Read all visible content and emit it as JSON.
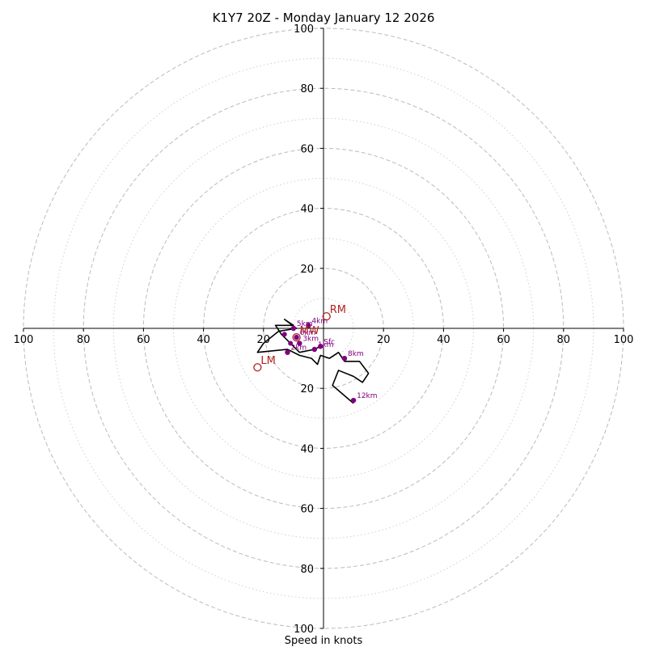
{
  "chart_data": {
    "type": "hodograph",
    "title": "K1Y7 20Z - Monday January 12 2026",
    "xlabel": "Speed in knots",
    "range": [
      -100,
      100
    ],
    "rings_major": [
      20,
      40,
      60,
      80,
      100
    ],
    "rings_minor": [
      10,
      30,
      50,
      70,
      90
    ],
    "x_ticks": [
      {
        "v": -100,
        "t": "100"
      },
      {
        "v": -80,
        "t": "80"
      },
      {
        "v": -60,
        "t": "60"
      },
      {
        "v": -40,
        "t": "40"
      },
      {
        "v": -20,
        "t": "20"
      },
      {
        "v": 20,
        "t": "20"
      },
      {
        "v": 40,
        "t": "40"
      },
      {
        "v": 60,
        "t": "60"
      },
      {
        "v": 80,
        "t": "80"
      },
      {
        "v": 100,
        "t": "100"
      }
    ],
    "y_ticks": [
      {
        "v": 100,
        "t": "100"
      },
      {
        "v": 80,
        "t": "80"
      },
      {
        "v": 60,
        "t": "60"
      },
      {
        "v": 40,
        "t": "40"
      },
      {
        "v": 20,
        "t": "20"
      },
      {
        "v": -20,
        "t": "20"
      },
      {
        "v": -40,
        "t": "40"
      },
      {
        "v": -60,
        "t": "60"
      },
      {
        "v": -80,
        "t": "80"
      },
      {
        "v": -100,
        "t": "100"
      }
    ],
    "trace": [
      [
        -1,
        -6
      ],
      [
        -3,
        -7
      ],
      [
        -8,
        -8
      ],
      [
        -12,
        -4
      ],
      [
        -14,
        -2
      ],
      [
        -16,
        1
      ],
      [
        -10,
        1
      ],
      [
        -13,
        3
      ],
      [
        -9,
        0
      ],
      [
        -15,
        -1
      ],
      [
        -20,
        -5
      ],
      [
        -22,
        -8
      ],
      [
        -12,
        -7
      ],
      [
        -8,
        -9
      ],
      [
        -4,
        -10
      ],
      [
        -2,
        -12
      ],
      [
        -1,
        -9
      ],
      [
        2,
        -10
      ],
      [
        5,
        -8
      ],
      [
        7,
        -11
      ],
      [
        12,
        -11
      ],
      [
        15,
        -15
      ],
      [
        13,
        -18
      ],
      [
        10,
        -16
      ],
      [
        5,
        -14
      ],
      [
        3,
        -19
      ],
      [
        10,
        -25
      ]
    ],
    "levels": [
      {
        "label": "Sfc",
        "u": -1,
        "v": -6
      },
      {
        "label": "1km",
        "u": -3,
        "v": -7
      },
      {
        "label": "2km",
        "u": -12,
        "v": -8
      },
      {
        "label": "3km",
        "u": -8,
        "v": -5
      },
      {
        "label": "4km",
        "u": -5,
        "v": 1
      },
      {
        "label": "5km",
        "u": -10,
        "v": 0
      },
      {
        "label": "6km",
        "u": -9,
        "v": -3
      },
      {
        "label": "8km",
        "u": 7,
        "v": -10
      },
      {
        "label": "12km",
        "u": 10,
        "v": -24
      }
    ],
    "extra_points": [
      [
        -13,
        -2
      ],
      [
        -11,
        -5
      ]
    ],
    "storm_motion": [
      {
        "label": "RM",
        "u": 1,
        "v": 4
      },
      {
        "label": "LM",
        "u": -22,
        "v": -13
      },
      {
        "label": "MW",
        "u": -9,
        "v": -3
      }
    ],
    "colors": {
      "trace": "#000000",
      "levels": "#800080",
      "storm_motion": "#b22222",
      "ring": "#bbbbbb",
      "axis": "#000000"
    }
  }
}
